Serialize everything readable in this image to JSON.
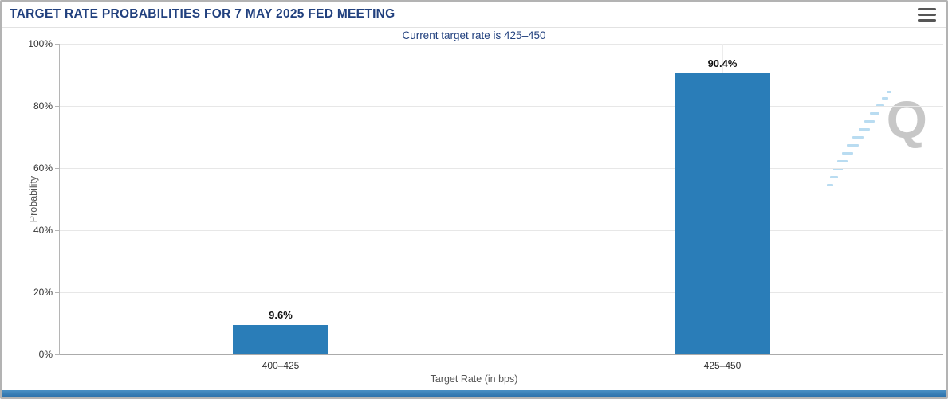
{
  "header": {
    "title": "TARGET RATE PROBABILITIES FOR 7 MAY 2025 FED MEETING"
  },
  "chart_data": {
    "type": "bar",
    "title": "Current target rate is 425–450",
    "categories": [
      "400–425",
      "425–450"
    ],
    "values": [
      9.6,
      90.4
    ],
    "value_labels": [
      "9.6%",
      "90.4%"
    ],
    "xlabel": "Target Rate (in bps)",
    "ylabel": "Probability",
    "ylim": [
      0,
      100
    ],
    "yticks": [
      "0%",
      "20%",
      "40%",
      "60%",
      "80%",
      "100%"
    ],
    "grid": true,
    "legend": "none",
    "bar_color": "#2a7db8"
  },
  "watermark": {
    "letter": "Q"
  },
  "colors": {
    "title_navy": "#21407e",
    "bar_blue": "#2a7db8",
    "footer_blue": "#2f7cb5",
    "gridline": "#e7e7e7"
  }
}
